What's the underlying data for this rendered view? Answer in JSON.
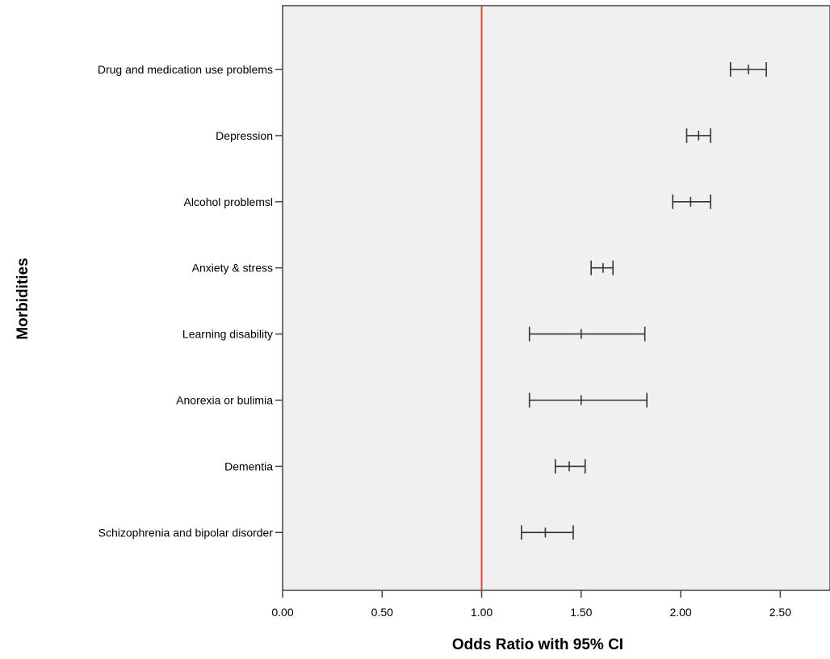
{
  "chart_data": {
    "type": "forest",
    "xlabel": "Odds Ratio with 95% CI",
    "ylabel": "Morbidities",
    "xlim": [
      0,
      2.75
    ],
    "x_ticks": [
      0,
      0.5,
      1,
      1.5,
      2,
      2.5
    ],
    "x_tick_labels": [
      "0.00",
      "0.50",
      "1.00",
      "1.50",
      "2.00",
      "2.50"
    ],
    "reference_line": {
      "x": 1.0,
      "color": "#e8473f"
    },
    "background_color": "#f0f0f0",
    "grid": false,
    "categories": [
      "Drug and medication use problems",
      "Depression",
      "Alcohol problemsl",
      "Anxiety & stress",
      "Learning disability",
      "Anorexia or bulimia",
      "Dementia",
      "Schizophrenia and bipolar disorder"
    ],
    "estimates": [
      2.34,
      2.09,
      2.05,
      1.61,
      1.5,
      1.5,
      1.44,
      1.32
    ],
    "lower": [
      2.25,
      2.03,
      1.96,
      1.55,
      1.24,
      1.24,
      1.37,
      1.2
    ],
    "upper": [
      2.43,
      2.15,
      2.15,
      1.66,
      1.82,
      1.83,
      1.52,
      1.46
    ]
  }
}
